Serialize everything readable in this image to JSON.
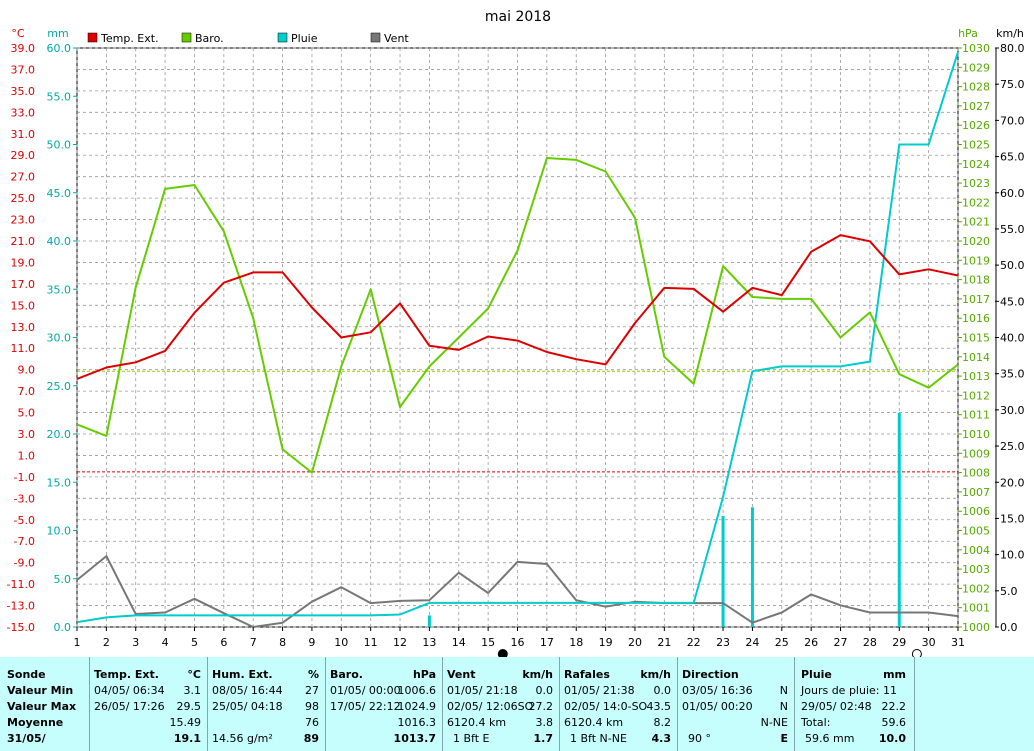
{
  "chart_data": {
    "type": "line",
    "title": "mai 2018",
    "x": [
      1,
      2,
      3,
      4,
      5,
      6,
      7,
      8,
      9,
      10,
      11,
      12,
      13,
      14,
      15,
      16,
      17,
      18,
      19,
      20,
      21,
      22,
      23,
      24,
      25,
      26,
      27,
      28,
      29,
      30,
      31
    ],
    "axes": {
      "temp": {
        "unit": "°C",
        "min": -15,
        "max": 41,
        "ticks": [
          "39.0",
          "37.0",
          "35.0",
          "33.0",
          "31.0",
          "29.0",
          "27.0",
          "25.0",
          "23.0",
          "21.0",
          "19.0",
          "17.0",
          "15.0",
          "13.0",
          "11.0",
          "9.0",
          "7.0",
          "5.0",
          "3.0",
          "1.0",
          "-1.0",
          "-3.0",
          "-5.0",
          "-7.0",
          "-9.0",
          "-11.0",
          "-13.0",
          "-15.0"
        ]
      },
      "rain": {
        "unit": "mm",
        "min": 0,
        "max": 60,
        "ticks": [
          "60.0",
          "55.0",
          "50.0",
          "45.0",
          "40.0",
          "35.0",
          "30.0",
          "25.0",
          "20.0",
          "15.0",
          "10.0",
          "5.0",
          "0.0"
        ]
      },
      "baro": {
        "unit": "hPa",
        "min": 1000,
        "max": 1030,
        "ticks": [
          "1030",
          "1029",
          "1028",
          "1027",
          "1026",
          "1025",
          "1024",
          "1023",
          "1022",
          "1021",
          "1020",
          "1019",
          "1018",
          "1017",
          "1016",
          "1015",
          "1014",
          "1013",
          "1012",
          "1011",
          "1010",
          "1009",
          "1008",
          "1007",
          "1006",
          "1005",
          "1004",
          "1003",
          "1002",
          "1001",
          "1000"
        ]
      },
      "wind": {
        "unit": "km/h",
        "min": 0,
        "max": 80,
        "ticks": [
          "80.0",
          "75.0",
          "70.0",
          "65.0",
          "60.0",
          "55.0",
          "50.0",
          "45.0",
          "40.0",
          "35.0",
          "30.0",
          "25.0",
          "20.0",
          "15.0",
          "10.0",
          "5.0",
          "0.0"
        ]
      }
    },
    "legend": {
      "position": "top",
      "items": [
        {
          "name": "Temp. Ext.",
          "color": "#dd0000"
        },
        {
          "name": "Baro.",
          "color": "#66cc00"
        },
        {
          "name": "Pluie",
          "color": "#00cccc"
        },
        {
          "name": "Vent",
          "color": "#777777"
        }
      ]
    },
    "grid": true,
    "series": [
      {
        "name": "Temp. Ext.",
        "axis": "temp",
        "color": "#dd0000",
        "values": [
          9.0,
          10.1,
          10.6,
          11.7,
          15.4,
          18.3,
          19.3,
          19.3,
          15.9,
          13.0,
          13.5,
          16.3,
          12.2,
          11.8,
          13.1,
          12.7,
          11.6,
          10.9,
          10.4,
          14.4,
          17.8,
          17.7,
          15.5,
          17.8,
          17.1,
          21.3,
          22.9,
          22.3,
          19.1,
          19.6,
          19.0
        ]
      },
      {
        "name": "Baro.",
        "axis": "baro",
        "color": "#66cc00",
        "values": [
          1010.5,
          1009.9,
          1017.6,
          1022.7,
          1022.9,
          1020.5,
          1016.0,
          1009.2,
          1008.0,
          1013.5,
          1017.5,
          1011.4,
          1013.5,
          1015.0,
          1016.5,
          1019.5,
          1024.3,
          1024.2,
          1023.6,
          1021.2,
          1014.0,
          1012.6,
          1018.7,
          1017.1,
          1017.0,
          1017.0,
          1015.0,
          1016.3,
          1013.1,
          1012.4,
          1013.6
        ]
      },
      {
        "name": "Pluie",
        "axis": "rain",
        "color": "#00cccc",
        "values": [
          0.5,
          1.0,
          1.2,
          1.2,
          1.2,
          1.2,
          1.2,
          1.2,
          1.2,
          1.2,
          1.2,
          1.3,
          2.5,
          2.5,
          2.5,
          2.5,
          2.5,
          2.5,
          2.5,
          2.5,
          2.5,
          2.5,
          13.5,
          26.5,
          27.0,
          27.0,
          27.0,
          27.5,
          50.0,
          50.0,
          59.6
        ]
      },
      {
        "name": "Vent",
        "axis": "wind",
        "color": "#777777",
        "values": [
          6.5,
          9.8,
          1.8,
          2.0,
          3.9,
          1.9,
          0.0,
          0.6,
          3.5,
          5.5,
          3.3,
          3.6,
          3.7,
          7.5,
          4.7,
          9.0,
          8.7,
          3.7,
          2.8,
          3.5,
          3.3,
          3.3,
          3.3,
          0.6,
          2.0,
          4.5,
          3.0,
          2.0,
          2.0,
          2.0,
          1.5
        ]
      }
    ],
    "rain_bars": [
      {
        "x": 13,
        "value": 1.2
      },
      {
        "x": 23,
        "value": 11.5
      },
      {
        "x": 24,
        "value": 12.4
      },
      {
        "x": 29,
        "value": 22.2
      }
    ],
    "reference_lines": [
      {
        "axis": "baro",
        "value": 1013.25,
        "color": "#99cc00",
        "style": "dashed"
      },
      {
        "axis": "temp",
        "value": 0,
        "color": "#dd0000",
        "style": "dashed"
      }
    ],
    "moon_markers": [
      {
        "x": 15.5,
        "phase": "new"
      },
      {
        "x": 29.6,
        "phase": "full"
      }
    ]
  },
  "summary": {
    "rows": [
      "Sonde",
      "Valeur Min",
      "Valeur Max",
      "Moyenne",
      "31/05/"
    ],
    "temp": {
      "title": "Temp. Ext.",
      "unit": "°C",
      "min_when": "04/05/  06:34",
      "min": "3.1",
      "max_when": "26/05/  17:26",
      "max": "29.5",
      "avg": "15.49",
      "cur": "19.1"
    },
    "hum": {
      "title": "Hum. Ext.",
      "unit": "%",
      "min_when": "08/05/  16:44",
      "min": "27",
      "max_when": "25/05/  04:18",
      "max": "98",
      "avg": "76",
      "cur_extra": "14.56 g/m²",
      "cur": "89"
    },
    "baro": {
      "title": "Baro.",
      "unit": "hPa",
      "min_when": "01/05/  00:00",
      "min": "1006.6",
      "max_when": "17/05/  22:12",
      "max": "1024.9",
      "avg": "1016.3",
      "cur": "1013.7"
    },
    "vent": {
      "title": "Vent",
      "unit": "km/h",
      "min_when": "01/05/  21:18",
      "min": "0.0",
      "max_when": "02/05/  12:06SO",
      "max": "27.2",
      "avg_extra": "6120.4 km",
      "avg": "3.8",
      "cur_extra": "1 Bft E",
      "cur": "1.7"
    },
    "rafales": {
      "title": "Rafales",
      "unit": "km/h",
      "min_when": "01/05/  21:38",
      "min": "0.0",
      "max_when": "02/05/  14:0-SO",
      "max": "43.5",
      "avg_extra": "6120.4 km",
      "avg": "8.2",
      "cur_extra": "1 Bft N-NE",
      "cur": "4.3"
    },
    "direction": {
      "title": "Direction",
      "min_when": "03/05/  16:36",
      "min": "N",
      "max_when": "01/05/  00:20",
      "max": "N",
      "avg": "N-NE",
      "cur_extra": "90 °",
      "cur": "E"
    },
    "pluie": {
      "title": "Pluie",
      "unit": "mm",
      "line1": "Jours de pluie: 11",
      "max_when": "29/05/  02:48",
      "max": "22.2",
      "total_label": "Total:",
      "total": "59.6",
      "cur_extra": "59.6  mm",
      "cur": "10.0"
    }
  }
}
